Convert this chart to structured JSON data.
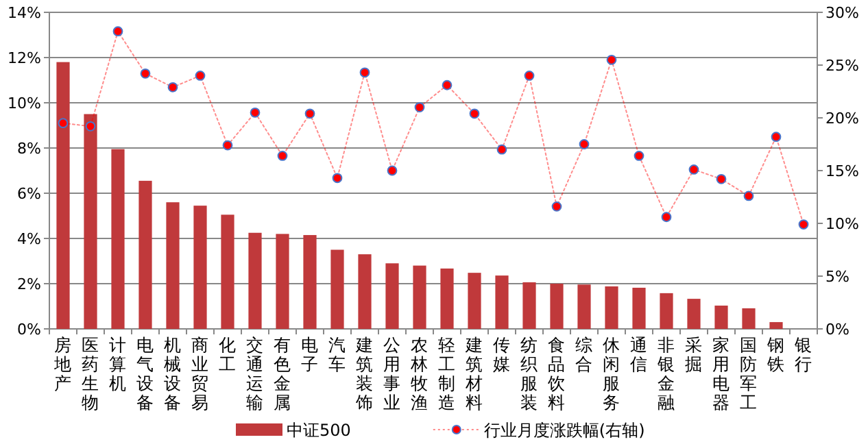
{
  "chart_data": {
    "type": "bar",
    "categories": [
      "房地产",
      "医药生物",
      "计算机",
      "电气设备",
      "机械设备",
      "商业贸易",
      "化工",
      "交通运输",
      "有色金属",
      "电子",
      "汽车",
      "建筑装饰",
      "公用事业",
      "农林牧渔",
      "轻工制造",
      "建筑材料",
      "传媒",
      "纺织服装",
      "食品饮料",
      "综合",
      "休闲服务",
      "通信",
      "非银金融",
      "采掘",
      "家用电器",
      "国防军工",
      "钢铁",
      "银行"
    ],
    "series": [
      {
        "name": "中证500",
        "color": "#c0393b",
        "values": [
          11.8,
          9.5,
          7.95,
          6.55,
          5.6,
          5.45,
          5.05,
          4.25,
          4.2,
          4.15,
          3.5,
          3.3,
          2.9,
          2.8,
          2.67,
          2.48,
          2.36,
          2.06,
          2.0,
          1.96,
          1.88,
          1.82,
          1.58,
          1.33,
          1.03,
          0.91,
          0.3,
          null
        ]
      },
      {
        "name": "行业月度涨跌幅(右轴)",
        "type": "line",
        "axis": "y2",
        "color": "#ff0000",
        "marker": "circle",
        "line_style": "dotted",
        "values": [
          19.5,
          19.2,
          28.2,
          24.2,
          22.9,
          24.0,
          17.4,
          20.5,
          16.4,
          20.4,
          14.3,
          24.3,
          15.0,
          21.0,
          23.1,
          20.4,
          17.0,
          24.0,
          11.6,
          17.5,
          25.5,
          16.4,
          10.6,
          15.1,
          14.2,
          12.6,
          18.2,
          9.9
        ]
      }
    ],
    "ylim": [
      0,
      14
    ],
    "yticks": [
      {
        "value": 0,
        "label": "0%"
      },
      {
        "value": 2,
        "label": "2%"
      },
      {
        "value": 4,
        "label": "4%"
      },
      {
        "value": 6,
        "label": "6%"
      },
      {
        "value": 8,
        "label": "8%"
      },
      {
        "value": 10,
        "label": "10%"
      },
      {
        "value": 12,
        "label": "12%"
      },
      {
        "value": 14,
        "label": "14%"
      }
    ],
    "y2lim": [
      0,
      30
    ],
    "y2ticks": [
      {
        "value": 0,
        "label": "0%"
      },
      {
        "value": 5,
        "label": "5%"
      },
      {
        "value": 10,
        "label": "10%"
      },
      {
        "value": 15,
        "label": "15%"
      },
      {
        "value": 20,
        "label": "20%"
      },
      {
        "value": 25,
        "label": "25%"
      },
      {
        "value": 30,
        "label": "30%"
      }
    ],
    "grid": "y",
    "legend": "bottom"
  }
}
